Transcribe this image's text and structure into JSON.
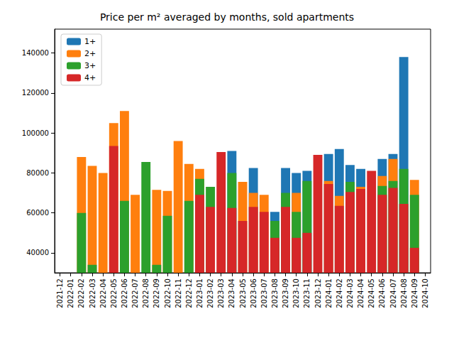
{
  "chart_data": {
    "type": "bar",
    "title": "Price per m² averaged by months, sold apartments",
    "stacked": false,
    "grid": false,
    "legend": "upper left",
    "categories": [
      "2021-12",
      "2022-01",
      "2022-02",
      "2022-03",
      "2022-04",
      "2022-05",
      "2022-06",
      "2022-07",
      "2022-08",
      "2022-09",
      "2022-10",
      "2022-11",
      "2022-12",
      "2023-01",
      "2023-02",
      "2023-03",
      "2023-04",
      "2023-05",
      "2023-06",
      "2023-07",
      "2023-08",
      "2023-09",
      "2023-10",
      "2023-11",
      "2023-12",
      "2024-01",
      "2024-02",
      "2024-03",
      "2024-04",
      "2024-05",
      "2024-06",
      "2024-07",
      "2024-08",
      "2024-09",
      "2024-10"
    ],
    "ylim": [
      30000,
      152000
    ],
    "yticks": [
      40000,
      60000,
      80000,
      100000,
      120000,
      140000
    ],
    "series": [
      {
        "name": "1+",
        "color": "#1f77b4",
        "values": [
          null,
          null,
          null,
          null,
          null,
          null,
          null,
          null,
          null,
          null,
          null,
          null,
          null,
          null,
          null,
          null,
          91000,
          null,
          82500,
          null,
          60500,
          82500,
          80000,
          81000,
          null,
          89500,
          92000,
          84000,
          82000,
          null,
          87000,
          89500,
          138000,
          null,
          null
        ]
      },
      {
        "name": "2+",
        "color": "#ff7f0e",
        "values": [
          null,
          null,
          88000,
          83500,
          80000,
          105000,
          111000,
          69000,
          null,
          71500,
          71000,
          96000,
          84500,
          82000,
          null,
          null,
          null,
          75500,
          70000,
          69000,
          null,
          null,
          70000,
          null,
          null,
          76000,
          68500,
          null,
          73000,
          null,
          78500,
          87000,
          null,
          76500,
          null
        ]
      },
      {
        "name": "3+",
        "color": "#2ca02c",
        "values": [
          null,
          null,
          60000,
          34000,
          null,
          null,
          66000,
          null,
          85500,
          34000,
          58500,
          null,
          66000,
          77000,
          73000,
          null,
          80000,
          null,
          null,
          null,
          56000,
          70000,
          60500,
          76000,
          null,
          null,
          null,
          75500,
          null,
          null,
          73500,
          76000,
          82000,
          69000,
          null
        ]
      },
      {
        "name": "4+",
        "color": "#d62728",
        "values": [
          null,
          null,
          null,
          null,
          null,
          93500,
          null,
          null,
          null,
          null,
          null,
          null,
          null,
          69000,
          63000,
          90500,
          62500,
          56000,
          63000,
          60500,
          47500,
          63000,
          47500,
          50000,
          89000,
          74500,
          63500,
          70500,
          72000,
          81000,
          69000,
          72500,
          64500,
          42500,
          null
        ]
      }
    ]
  }
}
